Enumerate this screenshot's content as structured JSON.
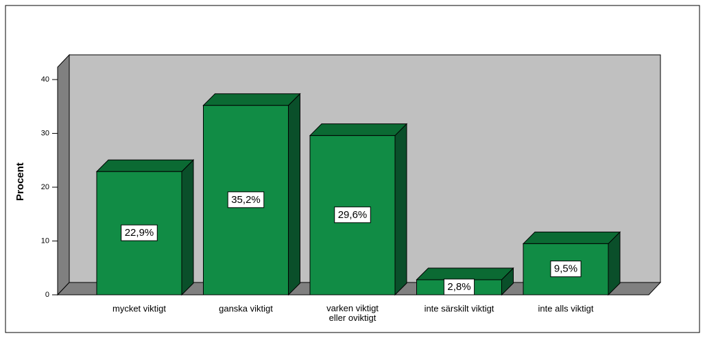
{
  "chart_data": {
    "type": "bar3d",
    "ylabel": "Procent",
    "categories": [
      "mycket viktigt",
      "ganska viktigt",
      "varken viktigt\neller oviktigt",
      "inte särskilt viktigt",
      "inte alls viktigt"
    ],
    "values": [
      22.9,
      35.2,
      29.6,
      2.8,
      9.5
    ],
    "value_labels": [
      "22,9%",
      "35,2%",
      "29,6%",
      "2,8%",
      "9,5%"
    ],
    "color": "#118c45",
    "ylim": [
      0,
      42.3
    ],
    "yticks": [
      0,
      10,
      20,
      30,
      40
    ]
  }
}
